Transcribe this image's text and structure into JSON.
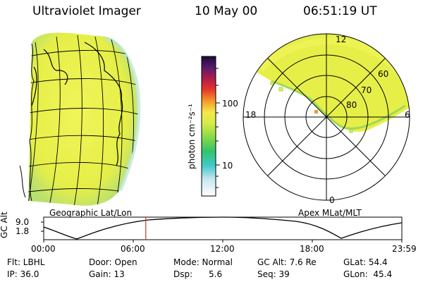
{
  "header": {
    "instrument": "Ultraviolet Imager",
    "date": "10 May 00",
    "time": "06:51:19 UT"
  },
  "colorbar": {
    "unit_label": "photon cm⁻²s⁻¹",
    "ticks": [
      "100",
      "10"
    ]
  },
  "panels": {
    "left_label": "Geographic Lat/Lon",
    "right_label": "Apex MLat/MLT"
  },
  "polar": {
    "mlt_labels": [
      "12",
      "18",
      "6",
      "0"
    ],
    "lat_labels": [
      "60",
      "70",
      "80"
    ]
  },
  "altitude_plot": {
    "ylabel": "GC Alt",
    "y_ticks": [
      "9.0",
      "1.8"
    ],
    "x_ticks": [
      "00:00",
      "06:00",
      "12:00",
      "18:00",
      "23:59"
    ],
    "current_time_fraction": 0.285
  },
  "info": {
    "filter": "Flt: LBHL",
    "door": "Door: Open",
    "mode": "Mode: Normal",
    "gc_alt": "GC Alt: 7.6 Re",
    "glat": "GLat: 54.4",
    "ip": "IP: 36.0",
    "gain": "Gain: 13",
    "dsp": "Dsp:      5.6",
    "seq": "Seq: 39",
    "glon": "GLon:  45.4"
  },
  "colors": {
    "aurora_main": "#e8f04a",
    "aurora_edge": "#9ed85a",
    "marker_line": "#c0392b"
  }
}
